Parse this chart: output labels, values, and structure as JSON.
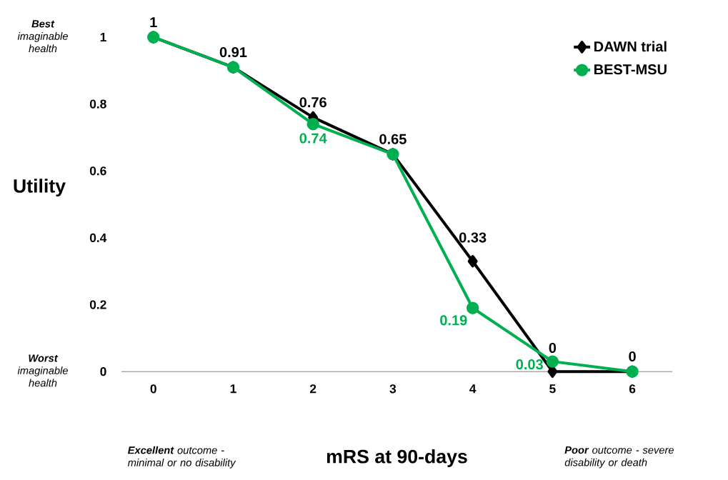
{
  "chart_data": {
    "type": "line",
    "xlabel": "mRS at 90-days",
    "ylabel": "Utility",
    "categories": [
      "0",
      "1",
      "2",
      "3",
      "4",
      "5",
      "6"
    ],
    "ylim": [
      0,
      1
    ],
    "yticks": [
      0,
      0.2,
      0.4,
      0.6,
      0.8,
      1
    ],
    "legend": "top right",
    "grid": false,
    "line_style": "solid",
    "series": [
      {
        "name": "DAWN trial",
        "color": "#000000",
        "marker": "diamond",
        "values": [
          1,
          0.91,
          0.76,
          0.65,
          0.33,
          0,
          0
        ],
        "value_labels": [
          "1",
          "0.91",
          "0.76",
          "0.65",
          "0.33",
          "0",
          "0"
        ]
      },
      {
        "name": "BEST-MSU",
        "color": "#00b050",
        "marker": "circle",
        "values": [
          1,
          0.91,
          0.74,
          0.65,
          0.19,
          0.03,
          0
        ],
        "value_labels": [
          null,
          null,
          "0.74",
          null,
          "0.19",
          "0.03",
          null
        ]
      }
    ],
    "annotations": [
      "**Best** imaginable health",
      "**Worst** imaginable health",
      "**Excellent** outcome - minimal or no disability",
      "**Poor** outcome - severe disability or death"
    ]
  }
}
